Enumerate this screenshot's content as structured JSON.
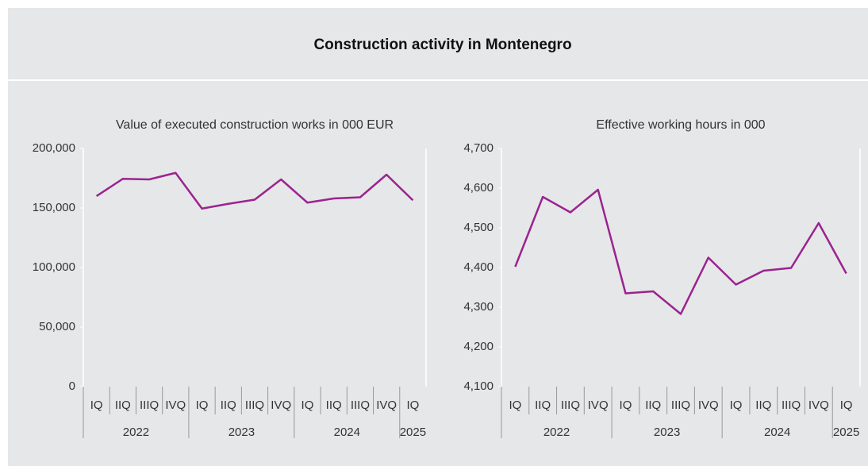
{
  "title": "Construction activity in Montenegro",
  "chart_data": [
    {
      "type": "line",
      "title": "Value of executed construction works in 000 EUR",
      "category_groups": [
        {
          "name": "2022",
          "categories": [
            "IQ",
            "IIQ",
            "IIIQ",
            "IVQ"
          ]
        },
        {
          "name": "2023",
          "categories": [
            "IQ",
            "IIQ",
            "IIIQ",
            "IVQ"
          ]
        },
        {
          "name": "2024",
          "categories": [
            "IQ",
            "IIQ",
            "IIIQ",
            "IVQ"
          ]
        },
        {
          "name": "2025",
          "categories": [
            "IQ"
          ]
        }
      ],
      "values": [
        160000,
        174500,
        174000,
        179500,
        149500,
        153500,
        157000,
        174000,
        154500,
        158000,
        159000,
        178000,
        156500
      ],
      "color": "#9b2390",
      "ylim": [
        0,
        200000
      ],
      "yticks": [
        0,
        {
          "value": 50000,
          "label": "50,000"
        },
        {
          "value": 100000,
          "label": "100,000"
        },
        {
          "value": 150000,
          "label": "150,000"
        },
        {
          "value": 200000,
          "label": "200,000"
        }
      ]
    },
    {
      "type": "line",
      "title": "Effective working hours in 000",
      "category_groups": [
        {
          "name": "2022",
          "categories": [
            "IQ",
            "IIQ",
            "IIIQ",
            "IVQ"
          ]
        },
        {
          "name": "2023",
          "categories": [
            "IQ",
            "IIQ",
            "IIIQ",
            "IVQ"
          ]
        },
        {
          "name": "2024",
          "categories": [
            "IQ",
            "IIQ",
            "IIIQ",
            "IVQ"
          ]
        },
        {
          "name": "2025",
          "categories": [
            "IQ"
          ]
        }
      ],
      "values": [
        4402,
        4578,
        4539,
        4596,
        4335,
        4340,
        4283,
        4425,
        4357,
        4392,
        4399,
        4512,
        4385
      ],
      "color": "#9b2390",
      "ylim": [
        4100,
        4700
      ],
      "yticks": [
        {
          "value": 4100,
          "label": "4,100"
        },
        {
          "value": 4200,
          "label": "4,200"
        },
        {
          "value": 4300,
          "label": "4,300"
        },
        {
          "value": 4400,
          "label": "4,400"
        },
        {
          "value": 4500,
          "label": "4,500"
        },
        {
          "value": 4600,
          "label": "4,600"
        },
        {
          "value": 4700,
          "label": "4,700"
        }
      ]
    }
  ]
}
